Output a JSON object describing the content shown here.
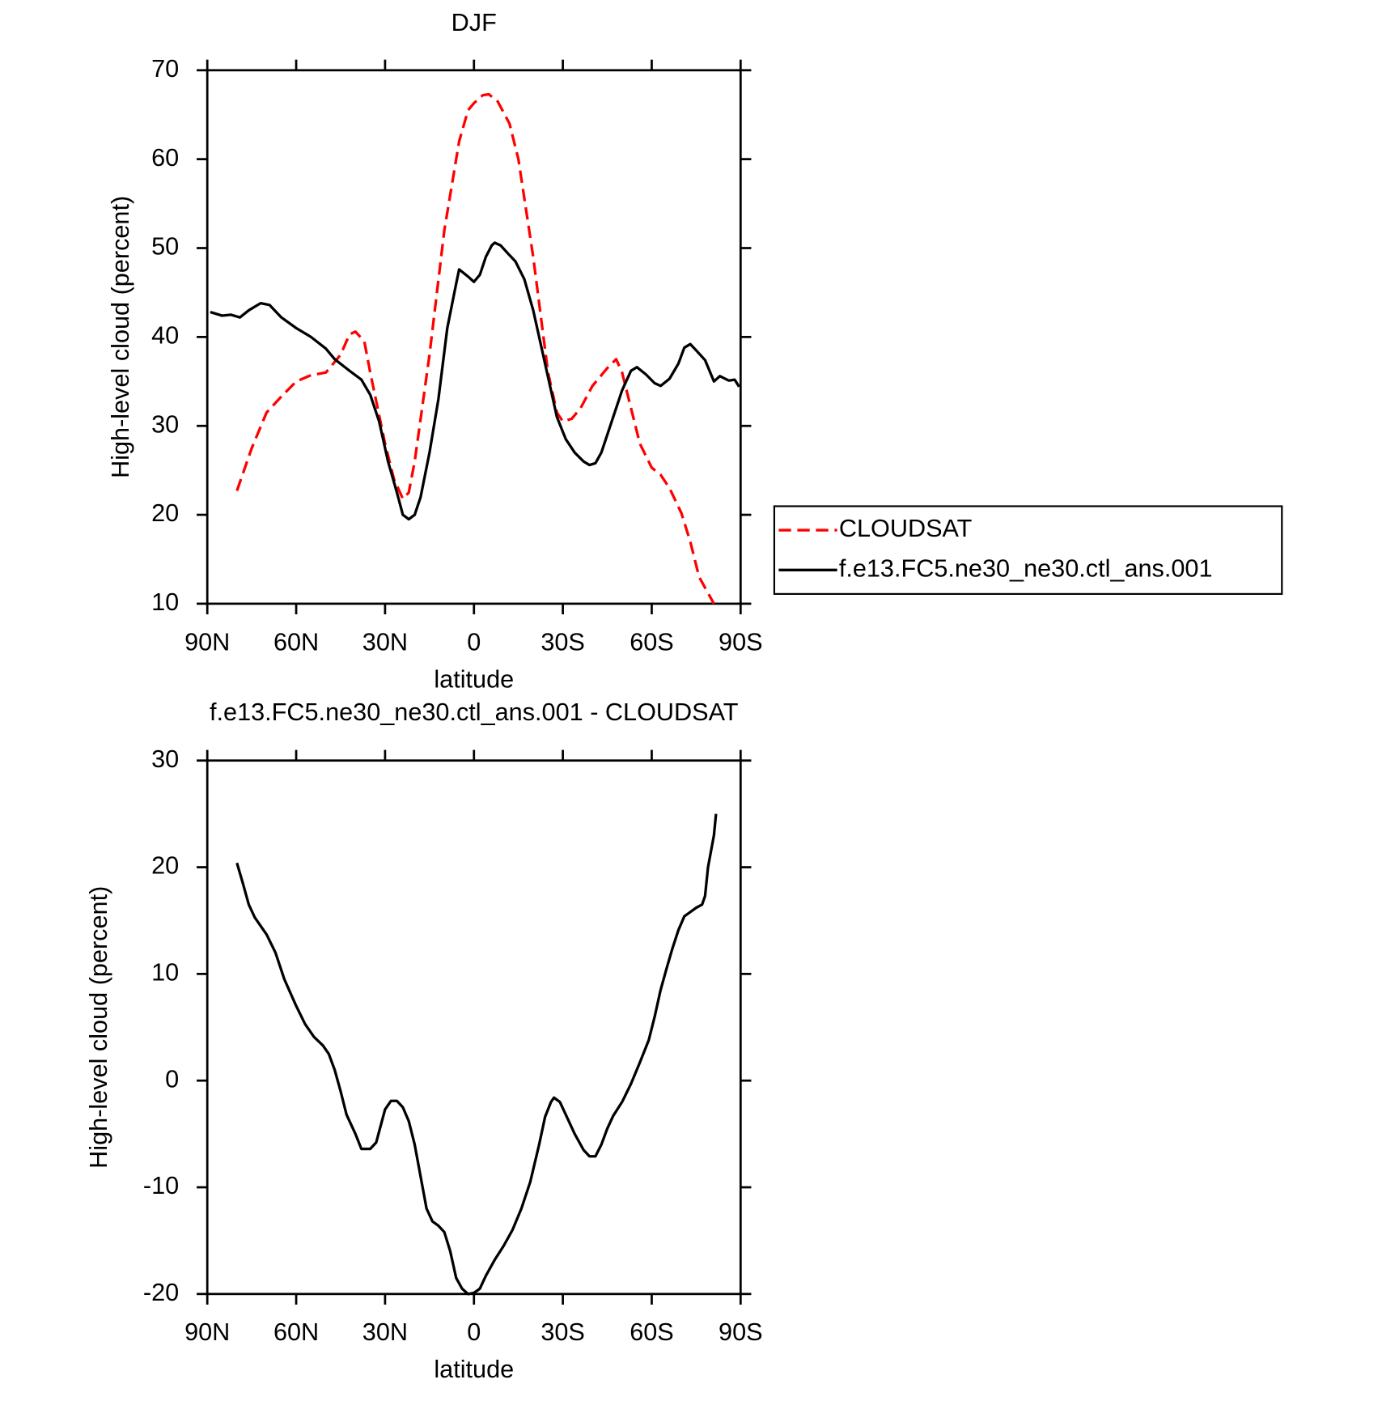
{
  "chart_data": [
    {
      "type": "line",
      "title": "DJF",
      "xlabel": "latitude",
      "ylabel": "High-level cloud (percent)",
      "xlim": [
        90,
        -90
      ],
      "xticks": [
        {
          "value": 90,
          "label": "90N"
        },
        {
          "value": 60,
          "label": "60N"
        },
        {
          "value": 30,
          "label": "30N"
        },
        0,
        {
          "value": -30,
          "label": "30S"
        },
        {
          "value": -60,
          "label": "60S"
        },
        {
          "value": -90,
          "label": "90S"
        }
      ],
      "ylim": [
        10,
        70
      ],
      "yticks": [
        10,
        20,
        30,
        40,
        50,
        60,
        70
      ],
      "legend": "right",
      "series": [
        {
          "name": "CLOUDSAT",
          "color": "#ff0000",
          "line_style": "dashed",
          "x": [
            80,
            75,
            70,
            65,
            60,
            55,
            50,
            45,
            42,
            40,
            37,
            35,
            30,
            27,
            24,
            22,
            20,
            15,
            10,
            5,
            2,
            0,
            -3,
            -5,
            -8,
            -12,
            -15,
            -20,
            -25,
            -28,
            -30,
            -33,
            -36,
            -40,
            -45,
            -48,
            -50,
            -53,
            -56,
            -60,
            -63,
            -66,
            -70,
            -73,
            -76,
            -81
          ],
          "values": [
            22.7,
            27.5,
            31.5,
            33.3,
            35,
            35.7,
            36,
            38,
            40.3,
            40.6,
            39.5,
            36,
            28,
            24,
            21.8,
            22.5,
            26,
            38,
            52,
            62,
            65.5,
            66.3,
            67.2,
            67.3,
            66.5,
            64,
            60,
            49,
            36,
            31.5,
            30.5,
            30.8,
            32,
            34.5,
            36.5,
            37.5,
            36,
            32,
            28,
            25.3,
            24.5,
            23,
            20.2,
            17,
            13,
            10
          ]
        },
        {
          "name": "f.e13.FC5.ne30_ne30.ctl_ans.001",
          "color": "#000000",
          "line_style": "solid",
          "x": [
            89,
            85,
            82,
            79,
            76,
            72,
            69,
            65,
            60,
            55,
            50,
            47,
            42,
            38,
            35,
            32,
            29,
            26,
            24,
            22,
            20,
            18,
            15,
            12,
            9,
            6,
            5,
            2,
            0,
            -2,
            -4,
            -6,
            -7,
            -9,
            -12,
            -14,
            -17,
            -20,
            -24,
            -28,
            -31,
            -34,
            -37,
            -39,
            -41,
            -43,
            -46,
            -50,
            -53,
            -55,
            -58,
            -61,
            -63,
            -66,
            -69,
            -71,
            -73,
            -75,
            -78,
            -81,
            -83,
            -86,
            -88,
            -89.5
          ],
          "values": [
            42.8,
            42.4,
            42.5,
            42.2,
            43,
            43.8,
            43.6,
            42.2,
            41,
            40,
            38.7,
            37.5,
            36.2,
            35.2,
            33.5,
            30.5,
            26,
            22.5,
            20,
            19.5,
            20,
            22,
            27,
            33,
            41,
            46,
            47.6,
            46.8,
            46.2,
            47,
            49,
            50.3,
            50.6,
            50.3,
            49.2,
            48.5,
            46.5,
            43,
            37,
            31,
            28.5,
            27,
            26,
            25.6,
            25.8,
            27,
            30,
            34,
            36.2,
            36.6,
            35.8,
            34.8,
            34.5,
            35.3,
            37,
            38.8,
            39.2,
            38.5,
            37.4,
            35,
            35.6,
            35.1,
            35.2,
            34.4
          ]
        }
      ]
    },
    {
      "type": "line",
      "title": "f.e13.FC5.ne30_ne30.ctl_ans.001 - CLOUDSAT",
      "xlabel": "latitude",
      "ylabel": "High-level cloud (percent)",
      "xlim": [
        90,
        -90
      ],
      "xticks": [
        {
          "value": 90,
          "label": "90N"
        },
        {
          "value": 60,
          "label": "60N"
        },
        {
          "value": 30,
          "label": "30N"
        },
        0,
        {
          "value": -30,
          "label": "30S"
        },
        {
          "value": -60,
          "label": "60S"
        },
        {
          "value": -90,
          "label": "90S"
        }
      ],
      "ylim": [
        -20,
        30
      ],
      "yticks": [
        -20,
        -10,
        0,
        10,
        20,
        30
      ],
      "series": [
        {
          "color": "#000000",
          "line_style": "solid",
          "x": [
            80,
            78,
            76,
            74,
            72,
            70,
            67,
            64,
            60,
            57,
            54,
            51,
            49,
            47,
            45,
            43,
            40,
            38,
            35,
            33,
            30,
            28,
            26,
            24,
            22,
            20,
            18,
            16,
            14,
            12,
            10,
            8,
            6,
            4,
            2,
            0,
            -2,
            -4,
            -7,
            -10,
            -13,
            -16,
            -19,
            -22,
            -24,
            -26,
            -27,
            -29,
            -31,
            -34,
            -37,
            -39,
            -41,
            -43,
            -45,
            -47,
            -50,
            -53,
            -56,
            -59,
            -61,
            -63,
            -65,
            -67,
            -69,
            -71,
            -73,
            -75,
            -77,
            -78,
            -79,
            -81,
            -81.7
          ],
          "values": [
            20.4,
            18.5,
            16.5,
            15.3,
            14.5,
            13.7,
            12,
            9.5,
            7,
            5.3,
            4.1,
            3.3,
            2.5,
            1,
            -1,
            -3.2,
            -5,
            -6.4,
            -6.4,
            -5.8,
            -2.7,
            -1.9,
            -1.9,
            -2.5,
            -3.8,
            -6,
            -9,
            -12,
            -13.2,
            -13.6,
            -14.2,
            -16,
            -18.5,
            -19.5,
            -20,
            -19.9,
            -19.5,
            -18.3,
            -16.8,
            -15.5,
            -14,
            -12,
            -9.5,
            -6,
            -3.4,
            -2,
            -1.6,
            -2,
            -3.2,
            -5,
            -6.5,
            -7.1,
            -7.1,
            -6,
            -4.5,
            -3.3,
            -2,
            -0.3,
            1.7,
            3.8,
            6,
            8.5,
            10.5,
            12.4,
            14.1,
            15.4,
            15.8,
            16.2,
            16.5,
            17.3,
            20,
            23,
            25
          ]
        }
      ]
    }
  ]
}
